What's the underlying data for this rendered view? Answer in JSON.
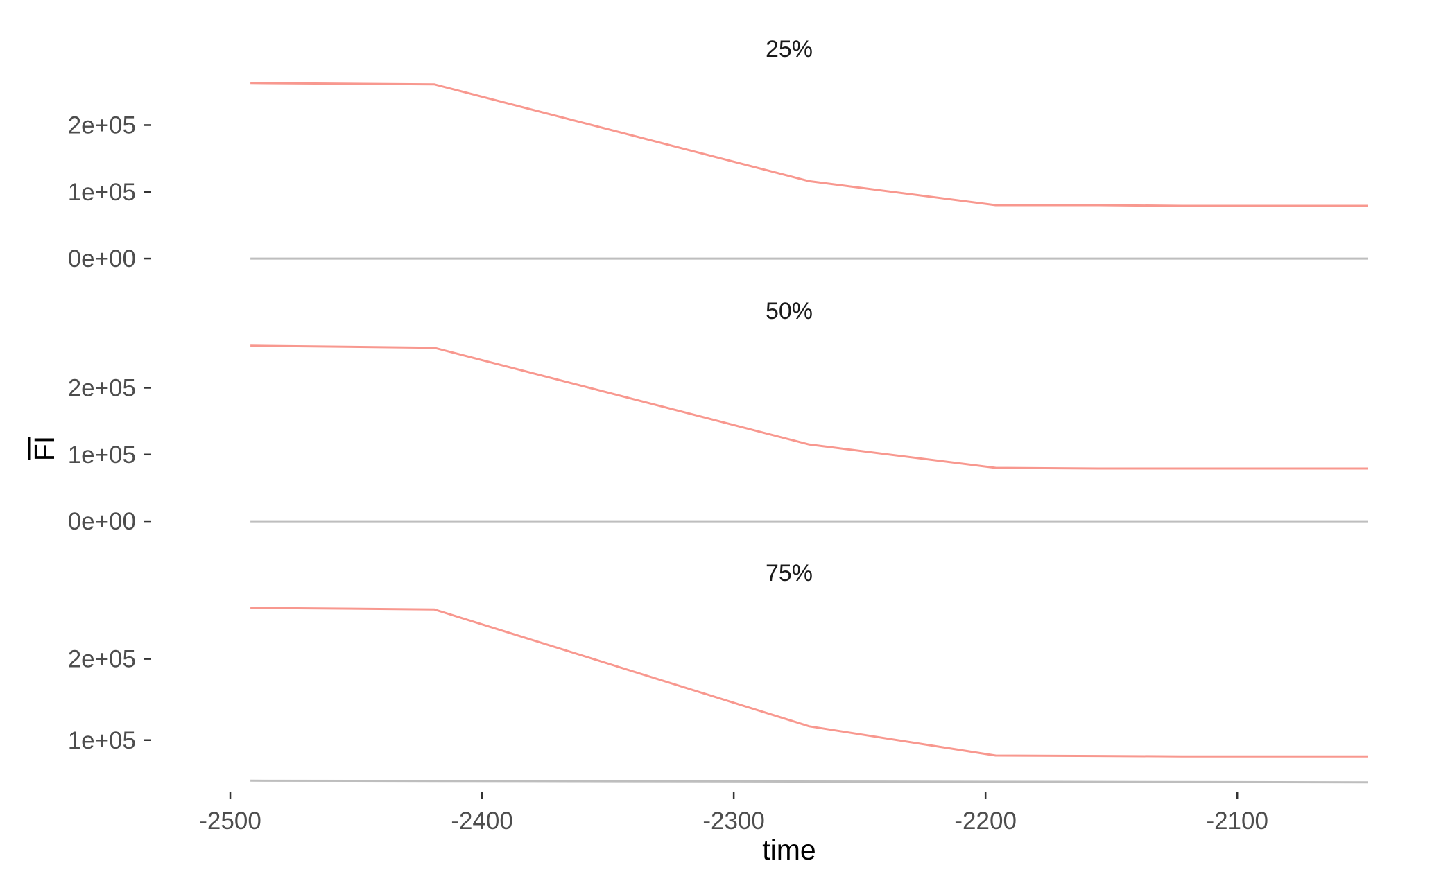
{
  "chart_data": {
    "type": "line",
    "xlabel": "time",
    "ylabel": "FI",
    "ylabel_overline": true,
    "xlim": [
      -2508,
      -2048
    ],
    "x_ticks": [
      -2500,
      -2400,
      -2300,
      -2200,
      -2100
    ],
    "x_tick_labels": [
      "-2500",
      "-2400",
      "-2300",
      "-2200",
      "-2100"
    ],
    "grid": false,
    "legend": "none",
    "line_color": "#f8988f",
    "baseline_color": "#bebebe",
    "panels": [
      {
        "title": "25%",
        "ylim": [
          -2000,
          268000
        ],
        "y_ticks": [
          0,
          100000,
          200000
        ],
        "y_tick_labels": [
          "0e+00",
          "1e+05",
          "2e+05"
        ],
        "series": [
          {
            "x": [
              -2492,
              -2419,
              -2270,
              -2196,
              -2155,
              -2122,
              -2048
            ],
            "y": [
              263000,
              261000,
              116000,
              80000,
              80000,
              79000,
              79000
            ]
          },
          {
            "x": [
              -2492,
              -2048
            ],
            "y": [
              0,
              0
            ],
            "role": "baseline"
          }
        ]
      },
      {
        "title": "50%",
        "ylim": [
          -2000,
          268000
        ],
        "y_ticks": [
          0,
          100000,
          200000
        ],
        "y_tick_labels": [
          "0e+00",
          "1e+05",
          "2e+05"
        ],
        "series": [
          {
            "x": [
              -2492,
              -2419,
              -2270,
              -2196,
              -2155,
              -2122,
              -2048
            ],
            "y": [
              263000,
              260000,
              115000,
              80000,
              79000,
              79000,
              79000
            ]
          },
          {
            "x": [
              -2492,
              -2048
            ],
            "y": [
              0,
              0
            ],
            "role": "baseline"
          }
        ]
      },
      {
        "title": "75%",
        "ylim": [
          46000,
          268000
        ],
        "y_ticks": [
          100000,
          200000
        ],
        "y_tick_labels": [
          "1e+05",
          "2e+05"
        ],
        "series": [
          {
            "x": [
              -2492,
              -2419,
              -2270,
              -2196,
              -2155,
              -2122,
              -2048
            ],
            "y": [
              263000,
              261000,
              117000,
              81000,
              80500,
              80000,
              80000
            ]
          },
          {
            "x": [
              -2492,
              -2048
            ],
            "y": [
              50000,
              48000
            ],
            "role": "baseline"
          }
        ]
      }
    ]
  }
}
